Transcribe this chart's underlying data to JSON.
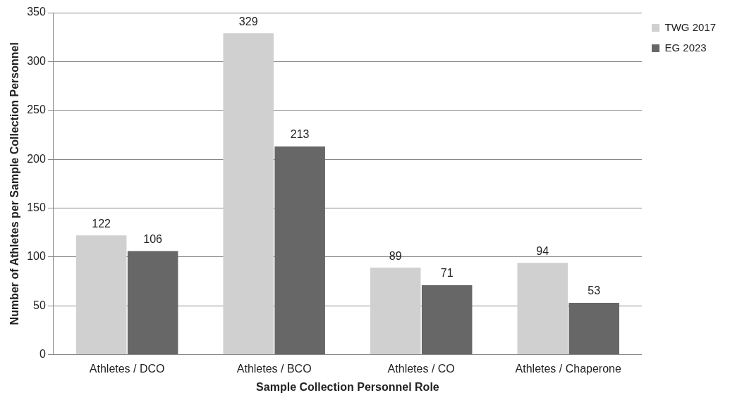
{
  "chart_data": {
    "type": "bar",
    "xlabel": "Sample Collection Personnel Role",
    "ylabel": "Number of Athletes per Sample Collection Personnel",
    "categories": [
      "Athletes / DCO",
      "Athletes / BCO",
      "Athletes / CO",
      "Athletes / Chaperone"
    ],
    "series": [
      {
        "name": "TWG 2017",
        "color": "#d0d0d0",
        "values": [
          122,
          329,
          89,
          94
        ]
      },
      {
        "name": "EG 2023",
        "color": "#676767",
        "values": [
          106,
          213,
          71,
          53
        ]
      }
    ],
    "ylim": [
      0,
      350
    ],
    "yticks": [
      0,
      50,
      100,
      150,
      200,
      250,
      300,
      350
    ],
    "grid": "y",
    "legend": "top right",
    "data_labels": true
  }
}
